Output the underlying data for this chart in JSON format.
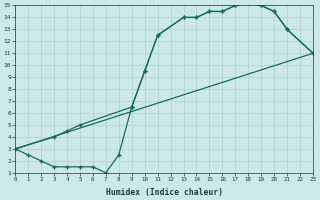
{
  "xlabel": "Humidex (Indice chaleur)",
  "xlim": [
    0,
    23
  ],
  "ylim": [
    1,
    15
  ],
  "xticks": [
    0,
    1,
    2,
    3,
    4,
    5,
    6,
    7,
    8,
    9,
    10,
    11,
    12,
    13,
    14,
    15,
    16,
    17,
    18,
    19,
    20,
    21,
    22,
    23
  ],
  "yticks": [
    1,
    2,
    3,
    4,
    5,
    6,
    7,
    8,
    9,
    10,
    11,
    12,
    13,
    14,
    15
  ],
  "bg_color": "#cce8e8",
  "line_color": "#1a6a5a",
  "grid_color": "#aed0d0",
  "line1_x": [
    0,
    1,
    2,
    3,
    4,
    5,
    6,
    7,
    8,
    9,
    10,
    11,
    13,
    14,
    15,
    16,
    17,
    18,
    19,
    20,
    21,
    23
  ],
  "line1_y": [
    3,
    2.5,
    2,
    1.5,
    1.5,
    1.5,
    1.5,
    1.0,
    2.5,
    6.5,
    9.5,
    12.5,
    14,
    14,
    14.5,
    14.5,
    15,
    15.2,
    15,
    14.5,
    13,
    11
  ],
  "line2_x": [
    0,
    3,
    4,
    5,
    9,
    10,
    11,
    13,
    14,
    15,
    16,
    17,
    18,
    19,
    20,
    21,
    23
  ],
  "line2_y": [
    3,
    4,
    4.5,
    5,
    6.5,
    9.5,
    12.5,
    14,
    14,
    14.5,
    14.5,
    15,
    15.2,
    15,
    14.5,
    13,
    11
  ],
  "line3_x": [
    0,
    23
  ],
  "line3_y": [
    3,
    11
  ]
}
